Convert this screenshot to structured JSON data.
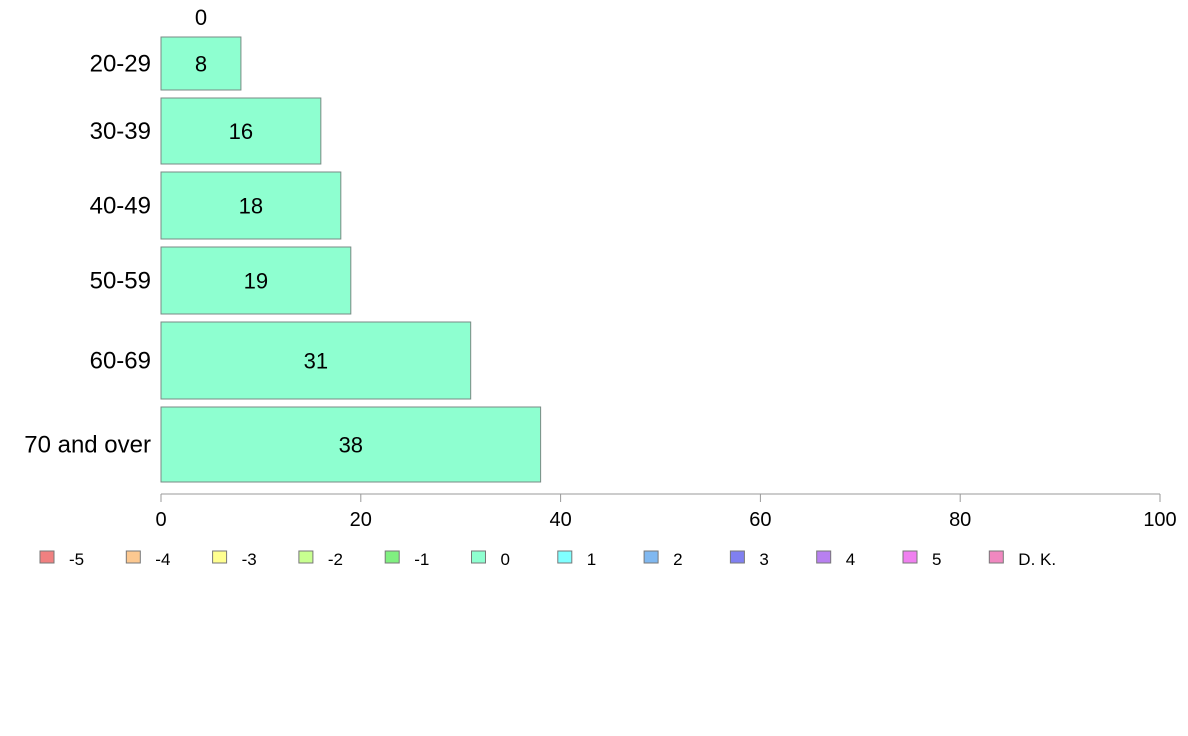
{
  "chart_data": {
    "type": "bar",
    "orientation": "horizontal",
    "stacked": true,
    "title": "",
    "xlabel": "",
    "ylabel": "",
    "xlim": [
      0,
      100
    ],
    "xticks": [
      0,
      20,
      40,
      60,
      80,
      100
    ],
    "grid": false,
    "categories": [
      "20-29",
      "30-39",
      "40-49",
      "50-59",
      "60-69",
      "70 and over"
    ],
    "series": [
      {
        "name": "0",
        "values": [
          8,
          16,
          18,
          19,
          31,
          38
        ],
        "color": "#8effd0"
      }
    ],
    "top_segment_label": "0",
    "legend": {
      "position": "bottom",
      "items": [
        {
          "label": "-5",
          "color": "#f08080"
        },
        {
          "label": "-4",
          "color": "#fcc890"
        },
        {
          "label": "-3",
          "color": "#ffff90"
        },
        {
          "label": "-2",
          "color": "#c8ff90"
        },
        {
          "label": "-1",
          "color": "#80f080"
        },
        {
          "label": "0",
          "color": "#8effd0"
        },
        {
          "label": "1",
          "color": "#80ffff"
        },
        {
          "label": "2",
          "color": "#80b8f0"
        },
        {
          "label": "3",
          "color": "#8080f0"
        },
        {
          "label": "4",
          "color": "#b880f0"
        },
        {
          "label": "5",
          "color": "#f080f0"
        },
        {
          "label": "D. K.",
          "color": "#f088c0"
        }
      ]
    }
  }
}
